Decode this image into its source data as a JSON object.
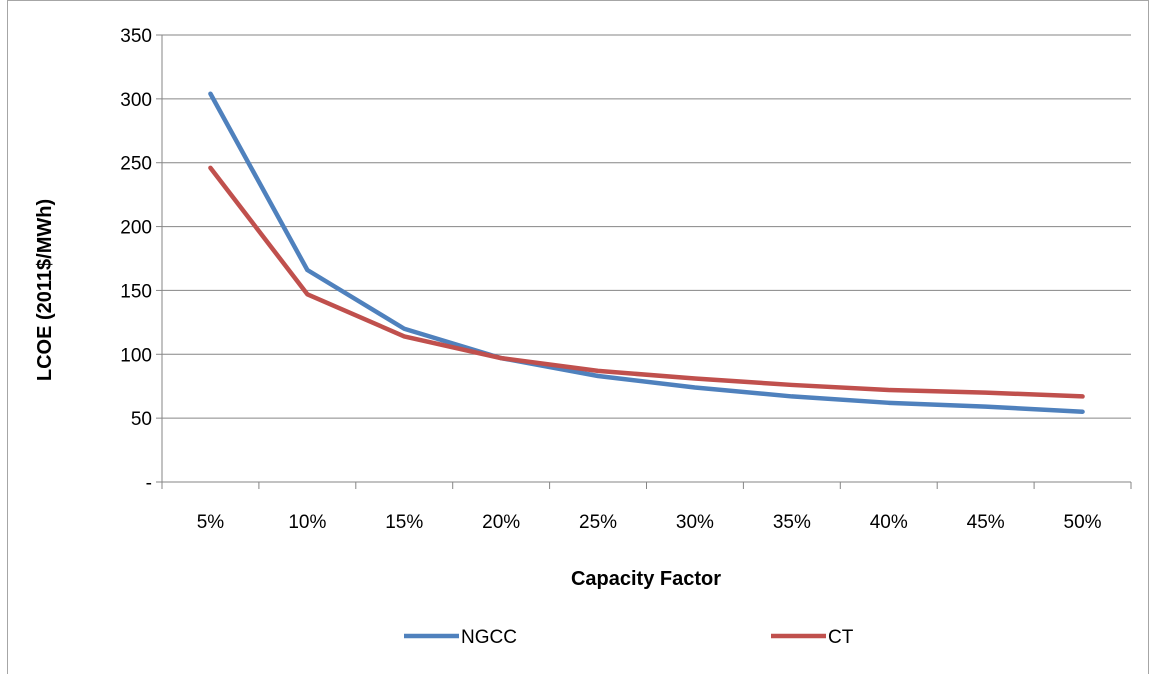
{
  "chart_data": {
    "type": "line",
    "categories": [
      "5%",
      "10%",
      "15%",
      "20%",
      "25%",
      "30%",
      "35%",
      "40%",
      "45%",
      "50%"
    ],
    "series": [
      {
        "name": "NGCC",
        "color": "#4f81bd",
        "values": [
          304,
          166,
          120,
          97,
          83,
          74,
          67,
          62,
          59,
          55
        ]
      },
      {
        "name": "CT",
        "color": "#c0504d",
        "values": [
          246,
          147,
          114,
          97,
          87,
          81,
          76,
          72,
          70,
          67
        ]
      }
    ],
    "xlabel": "Capacity Factor",
    "ylabel": "LCOE (2011$/MWh)",
    "ylim": [
      0,
      350
    ],
    "yticks": [
      0,
      50,
      100,
      150,
      200,
      250,
      300,
      350
    ],
    "ytick_labels": [
      "-",
      "50",
      "100",
      "150",
      "200",
      "250",
      "300",
      "350"
    ],
    "grid": true,
    "legend_position": "bottom"
  }
}
